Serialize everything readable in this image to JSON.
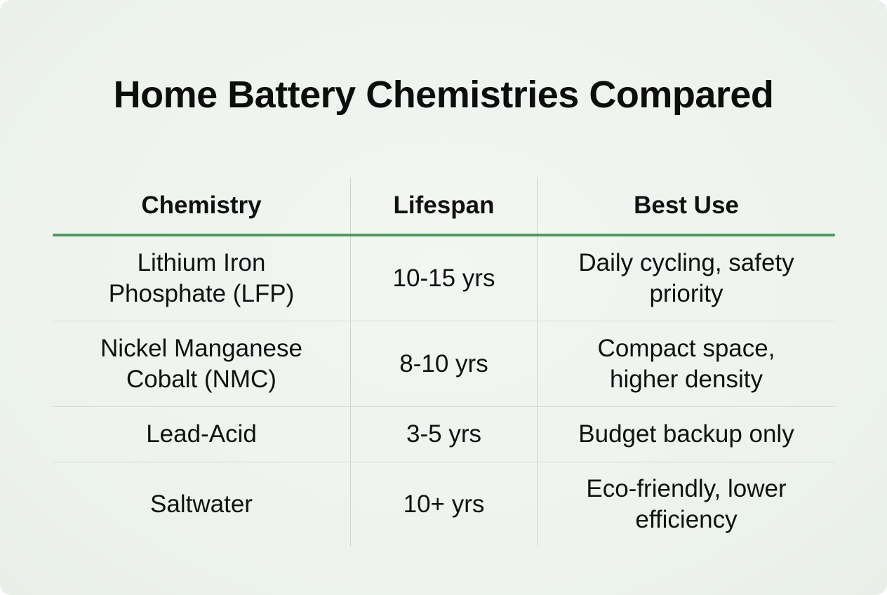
{
  "title": "Home Battery Chemistries Compared",
  "table": {
    "headers": [
      "Chemistry",
      "Lifespan",
      "Best Use"
    ],
    "rows": [
      {
        "chemistry": [
          "Lithium Iron",
          "Phosphate (LFP)"
        ],
        "lifespan": "10-15 yrs",
        "best_use": [
          "Daily cycling, safety",
          "priority"
        ]
      },
      {
        "chemistry": [
          "Nickel Manganese",
          "Cobalt (NMC)"
        ],
        "lifespan": "8-10 yrs",
        "best_use": [
          "Compact space,",
          "higher density"
        ]
      },
      {
        "chemistry": [
          "Lead-Acid"
        ],
        "lifespan": "3-5 yrs",
        "best_use": [
          "Budget backup only"
        ]
      },
      {
        "chemistry": [
          "Saltwater"
        ],
        "lifespan": "10+ yrs",
        "best_use": [
          "Eco-friendly, lower",
          "efficiency"
        ]
      }
    ]
  },
  "colors": {
    "accent_rule": "#4e9a5c",
    "background": "#eef3ee",
    "text": "#111111"
  }
}
